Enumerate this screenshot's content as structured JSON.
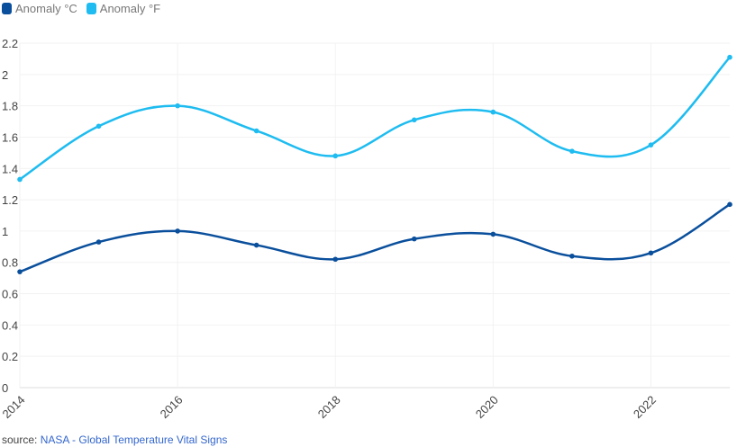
{
  "legend": {
    "items": [
      {
        "label": "Anomaly °C",
        "color": "#0a4f9c"
      },
      {
        "label": "Anomaly °F",
        "color": "#1ebcf0"
      }
    ]
  },
  "source": {
    "prefix": "source:",
    "link_text": "NASA - Global Temperature Vital Signs"
  },
  "chart_data": {
    "type": "line",
    "x": [
      2014,
      2015,
      2016,
      2017,
      2018,
      2019,
      2020,
      2021,
      2022,
      2023
    ],
    "series": [
      {
        "name": "Anomaly °C",
        "color": "#0a4f9c",
        "values": [
          0.74,
          0.93,
          1.0,
          0.91,
          0.82,
          0.95,
          0.98,
          0.84,
          0.86,
          1.17
        ]
      },
      {
        "name": "Anomaly °F",
        "color": "#1ebcf0",
        "values": [
          1.33,
          1.67,
          1.8,
          1.64,
          1.48,
          1.71,
          1.76,
          1.51,
          1.55,
          2.11
        ]
      }
    ],
    "xlim": [
      2014,
      2023
    ],
    "ylim": [
      0,
      2.2
    ],
    "xticks": [
      "2014",
      "2016",
      "2018",
      "2020",
      "2022"
    ],
    "yticks": [
      "0",
      "0.2",
      "0.4",
      "0.6",
      "0.8",
      "1",
      "1.2",
      "1.4",
      "1.6",
      "1.8",
      "2",
      "2.2"
    ],
    "title": "",
    "xlabel": "",
    "ylabel": "",
    "grid": true,
    "legend_position": "top-left"
  }
}
